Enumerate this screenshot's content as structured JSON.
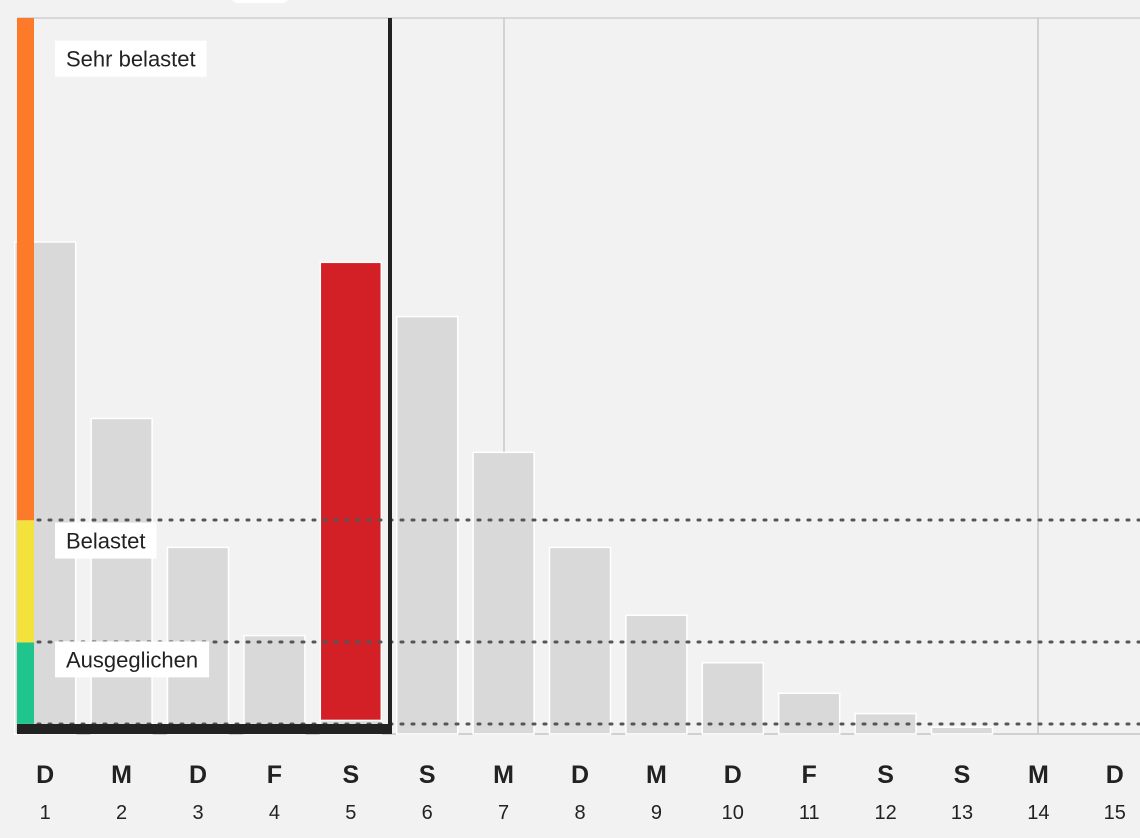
{
  "chart_data": {
    "type": "bar",
    "categories": [
      "1",
      "2",
      "3",
      "4",
      "5",
      "6",
      "7",
      "8",
      "9",
      "10",
      "11",
      "12",
      "13",
      "14",
      "15"
    ],
    "weekday_letters": [
      "D",
      "M",
      "D",
      "F",
      "S",
      "S",
      "M",
      "D",
      "M",
      "D",
      "F",
      "S",
      "S",
      "M",
      "D"
    ],
    "values": [
      71,
      45,
      26,
      13,
      68,
      60,
      40,
      26,
      16,
      9,
      4.5,
      1.5,
      -0.5,
      -1.5,
      -1.5
    ],
    "highlighted_index": 4,
    "highlighted_base": 0.5,
    "selection_end_index": 4,
    "ylim": [
      -1.5,
      104
    ],
    "thresholds": [
      {
        "value": 0,
        "color": "#999999"
      },
      {
        "value": 12,
        "color": "#1fc58c"
      },
      {
        "value": 30,
        "color": "#f3e23b"
      },
      {
        "value": 104,
        "color": "#fd7a2b"
      }
    ],
    "zone_labels": [
      {
        "text": "Sehr belastet",
        "value": 98
      },
      {
        "text": "Belastet",
        "value": 27
      },
      {
        "text": "Ausgeglichen",
        "value": 9.5
      }
    ],
    "week_separator_indices": [
      6,
      13
    ],
    "colors": {
      "bar": "#d9d9d9",
      "highlight": "#d31f26",
      "selection": "#222222",
      "background": "#f2f2f2"
    }
  }
}
